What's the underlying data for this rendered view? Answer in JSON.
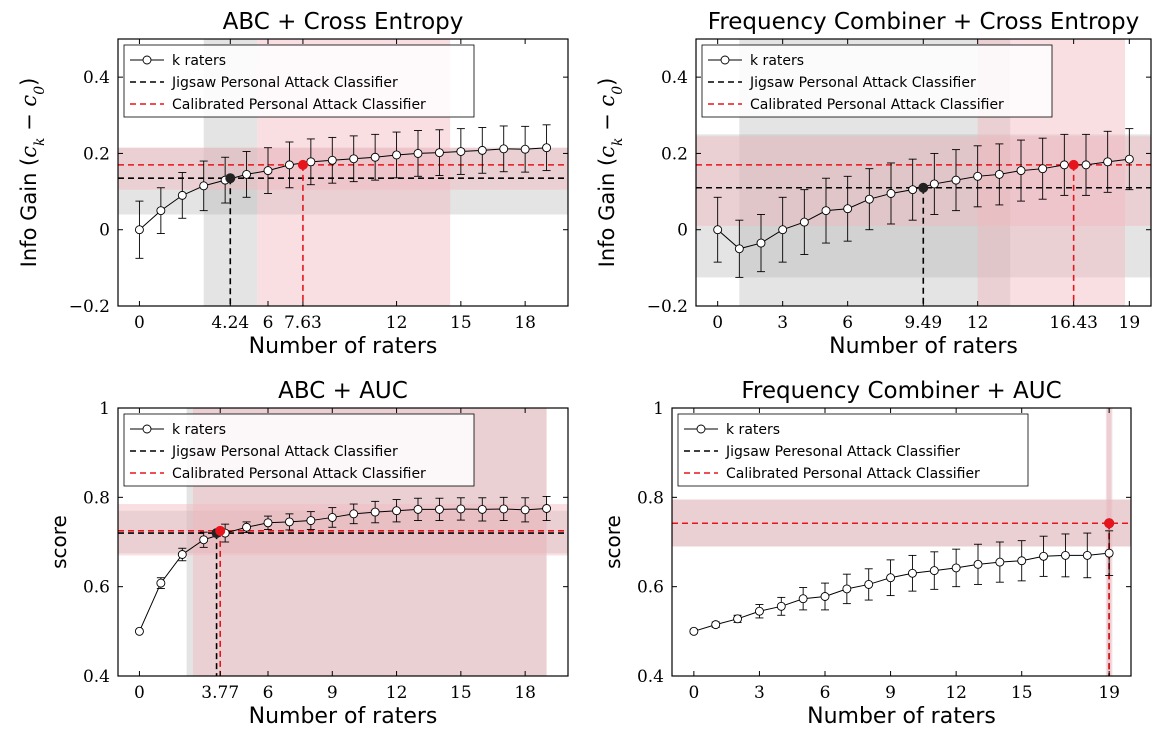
{
  "chart_data": [
    {
      "type": "line",
      "title": "ABC + Cross Entropy",
      "xlabel": "Number of raters",
      "ylabel_text": "Info Gain (",
      "ylabel_math": "c",
      "ylabel_sub_k": "k",
      "ylabel_minus": " − ",
      "ylabel_math2": "c",
      "ylabel_sub_0": "0",
      "ylabel_close": ")",
      "xlim": [
        -1,
        20
      ],
      "ylim": [
        -0.2,
        0.5
      ],
      "x_ticks": [
        0,
        4.24,
        6,
        7.63,
        12,
        15,
        18
      ],
      "x_tick_labels": [
        "0",
        "4.24",
        "6",
        "7.63",
        "12",
        "15",
        "18"
      ],
      "y_ticks": [
        -0.2,
        0,
        0.2,
        0.4
      ],
      "y_tick_labels": [
        "−0.2",
        "0",
        "0.2",
        "0.4"
      ],
      "legend": {
        "position": "top-left",
        "entries": [
          "k raters",
          "Jigsaw Personal Attack Classifier",
          "Calibrated Personal Attack Classifier"
        ]
      },
      "series": [
        {
          "name": "k raters",
          "x": [
            0,
            1,
            2,
            3,
            4,
            5,
            6,
            7,
            8,
            9,
            10,
            11,
            12,
            13,
            14,
            15,
            16,
            17,
            18,
            19
          ],
          "values": [
            0,
            0.05,
            0.09,
            0.115,
            0.13,
            0.145,
            0.155,
            0.17,
            0.178,
            0.182,
            0.186,
            0.19,
            0.196,
            0.2,
            0.202,
            0.205,
            0.208,
            0.212,
            0.211,
            0.215
          ],
          "err": [
            0.075,
            0.06,
            0.06,
            0.065,
            0.06,
            0.06,
            0.06,
            0.06,
            0.06,
            0.06,
            0.06,
            0.06,
            0.06,
            0.06,
            0.06,
            0.06,
            0.06,
            0.06,
            0.06,
            0.06
          ],
          "color": "#000000"
        }
      ],
      "jigsaw": {
        "y": 0.135,
        "y_band": [
          0.04,
          0.215
        ],
        "x_cross": 4.24,
        "x_band": [
          3,
          5.5
        ]
      },
      "calibrated": {
        "y": 0.17,
        "y_band": [
          0.105,
          0.215
        ],
        "x_cross": 7.63,
        "x_band": [
          5.5,
          14.5
        ]
      }
    },
    {
      "type": "line",
      "title": "Frequency Combiner + Cross Entropy",
      "xlabel": "Number of raters",
      "ylabel_text": "Info Gain (",
      "ylabel_math": "c",
      "ylabel_sub_k": "k",
      "ylabel_minus": " − ",
      "ylabel_math2": "c",
      "ylabel_sub_0": "0",
      "ylabel_close": ")",
      "xlim": [
        -1,
        20
      ],
      "ylim": [
        -0.2,
        0.5
      ],
      "x_ticks": [
        0,
        3,
        6,
        9.49,
        12,
        16.43,
        19
      ],
      "x_tick_labels": [
        "0",
        "3",
        "6",
        "9.49",
        "12",
        "16.43",
        "19"
      ],
      "y_ticks": [
        -0.2,
        0,
        0.2,
        0.4
      ],
      "y_tick_labels": [
        "−0.2",
        "0",
        "0.2",
        "0.4"
      ],
      "legend": {
        "position": "top-left",
        "entries": [
          "k raters",
          "Jigsaw Personal Attack Classifier",
          "Calibrated Personal Attack Classifier"
        ]
      },
      "series": [
        {
          "name": "k raters",
          "x": [
            0,
            1,
            2,
            3,
            4,
            5,
            6,
            7,
            8,
            9,
            10,
            11,
            12,
            13,
            14,
            15,
            16,
            17,
            18,
            19
          ],
          "values": [
            0,
            -0.05,
            -0.035,
            0,
            0.02,
            0.05,
            0.055,
            0.08,
            0.095,
            0.105,
            0.12,
            0.13,
            0.14,
            0.145,
            0.155,
            0.16,
            0.17,
            0.17,
            0.178,
            0.185
          ],
          "err": [
            0.085,
            0.075,
            0.075,
            0.085,
            0.085,
            0.085,
            0.085,
            0.08,
            0.08,
            0.08,
            0.08,
            0.08,
            0.08,
            0.08,
            0.08,
            0.08,
            0.08,
            0.08,
            0.08,
            0.08
          ],
          "color": "#000000"
        }
      ],
      "jigsaw": {
        "y": 0.11,
        "y_band": [
          -0.125,
          0.25
        ],
        "x_cross": 9.49,
        "x_band": [
          1,
          13.5
        ]
      },
      "calibrated": {
        "y": 0.17,
        "y_band": [
          0.01,
          0.245
        ],
        "x_cross": 16.43,
        "x_band": [
          12,
          18.8
        ]
      }
    },
    {
      "type": "line",
      "title": "ABC + AUC",
      "xlabel": "Number of raters",
      "ylabel": "score",
      "xlim": [
        -1,
        20
      ],
      "ylim": [
        0.4,
        1
      ],
      "x_ticks": [
        0,
        3.77,
        6,
        9,
        12,
        15,
        18
      ],
      "x_tick_labels": [
        "0",
        "3.77",
        "6",
        "9",
        "12",
        "15",
        "18"
      ],
      "y_ticks": [
        0.4,
        0.6,
        0.8,
        1
      ],
      "y_tick_labels": [
        "0.4",
        "0.6",
        "0.8",
        "1"
      ],
      "legend": {
        "position": "top-left",
        "entries": [
          "k raters",
          "Jigsaw Personal Attack Classifier",
          "Calibrated Personal Attack Classifier"
        ]
      },
      "series": [
        {
          "name": "k raters",
          "x": [
            0,
            1,
            2,
            3,
            4,
            5,
            6,
            7,
            8,
            9,
            10,
            11,
            12,
            13,
            14,
            15,
            16,
            17,
            18,
            19
          ],
          "values": [
            0.5,
            0.608,
            0.672,
            0.705,
            0.72,
            0.733,
            0.743,
            0.745,
            0.748,
            0.755,
            0.763,
            0.767,
            0.77,
            0.773,
            0.773,
            0.774,
            0.773,
            0.774,
            0.772,
            0.775
          ],
          "err": [
            0,
            0.012,
            0.014,
            0.017,
            0.02,
            0.012,
            0.015,
            0.018,
            0.02,
            0.022,
            0.022,
            0.024,
            0.025,
            0.025,
            0.025,
            0.025,
            0.026,
            0.026,
            0.027,
            0.027
          ],
          "color": "#000000"
        }
      ],
      "jigsaw": {
        "y": 0.72,
        "y_band": [
          0.675,
          0.77
        ],
        "x_cross": 3.6,
        "x_band": [
          2.2,
          19
        ]
      },
      "calibrated": {
        "y": 0.725,
        "y_band": [
          0.67,
          0.785
        ],
        "x_cross": 3.77,
        "x_band": [
          2.5,
          19
        ]
      }
    },
    {
      "type": "line",
      "title": "Frequency Combiner + AUC",
      "xlabel": "Number of raters",
      "ylabel": "score",
      "xlim": [
        -1,
        20
      ],
      "ylim": [
        0.4,
        1
      ],
      "x_ticks": [
        0,
        3,
        6,
        9,
        12,
        15,
        19
      ],
      "x_tick_labels": [
        "0",
        "3",
        "6",
        "9",
        "12",
        "15",
        "19"
      ],
      "y_ticks": [
        0.4,
        0.6,
        0.8,
        1
      ],
      "y_tick_labels": [
        "0.4",
        "0.6",
        "0.8",
        "1"
      ],
      "legend": {
        "position": "top-left",
        "entries": [
          "k raters",
          "Jigsaw Peresonal Attack Classifier",
          "Calibrated Personal Attack Classifier"
        ]
      },
      "series": [
        {
          "name": "k raters",
          "x": [
            0,
            1,
            2,
            3,
            4,
            5,
            6,
            7,
            8,
            9,
            10,
            11,
            12,
            13,
            14,
            15,
            16,
            17,
            18,
            19
          ],
          "values": [
            0.5,
            0.515,
            0.528,
            0.545,
            0.556,
            0.573,
            0.578,
            0.595,
            0.605,
            0.62,
            0.63,
            0.636,
            0.642,
            0.65,
            0.655,
            0.658,
            0.668,
            0.67,
            0.67,
            0.675
          ],
          "err": [
            0.004,
            0.006,
            0.008,
            0.015,
            0.02,
            0.025,
            0.03,
            0.033,
            0.035,
            0.04,
            0.04,
            0.042,
            0.042,
            0.045,
            0.045,
            0.045,
            0.045,
            0.048,
            0.05,
            0.05
          ],
          "color": "#000000"
        }
      ],
      "jigsaw": {
        "y": 0.742,
        "y_band": [
          0.69,
          0.795
        ],
        "x_cross": 19,
        "x_band": [
          18.9,
          19.1
        ]
      },
      "calibrated": {
        "y": 0.742,
        "y_band": [
          0.69,
          0.795
        ],
        "x_cross": 19,
        "x_band": [
          18.85,
          19.15
        ]
      }
    }
  ],
  "colors": {
    "jigsaw_band": "#b3b3b3",
    "calibrated_band": "#f2b8bf",
    "calibrated_line": "#e8141c",
    "jigsaw_line": "#000000",
    "marker_jigsaw": "#222222",
    "marker_calibrated": "#e8141c"
  }
}
